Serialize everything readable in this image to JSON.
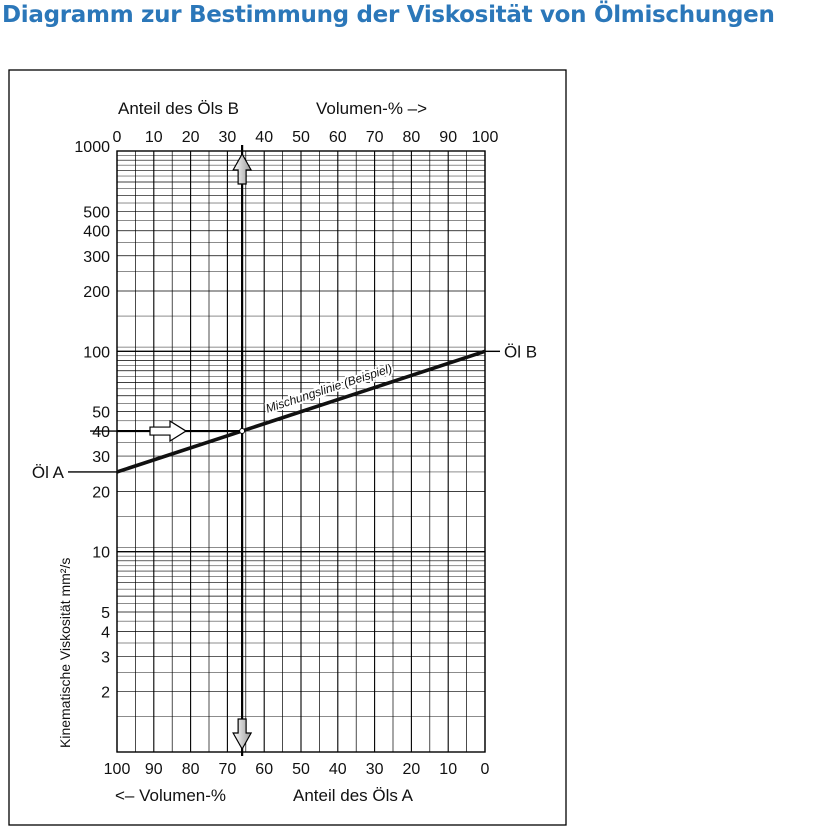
{
  "page": {
    "heading": "Diagramm zur Bestimmung der Viskosität von Ölmischungen"
  },
  "chart_data": {
    "type": "line",
    "title": "",
    "top_axis": {
      "label": "Anteil des Öls B",
      "unit_label": "Volumen-% –>",
      "tick_labels": [
        "0",
        "10",
        "20",
        "30",
        "40",
        "50",
        "60",
        "70",
        "80",
        "90",
        "100"
      ],
      "range": [
        0,
        100
      ]
    },
    "bottom_axis": {
      "unit_label": "<– Volumen-%",
      "label": "Anteil des Öls A",
      "tick_labels": [
        "100",
        "90",
        "80",
        "70",
        "60",
        "50",
        "40",
        "30",
        "20",
        "10",
        "0"
      ],
      "range": [
        100,
        0
      ]
    },
    "y_axis": {
      "label": "Kinematische Viskosität mm²/s",
      "scale": "log",
      "range": [
        1,
        1000
      ],
      "tick_values": [
        1000,
        500,
        400,
        300,
        200,
        100,
        50,
        40,
        30,
        20,
        10,
        5,
        4,
        3,
        2
      ],
      "tick_labels": [
        "1000",
        "500",
        "400",
        "300",
        "200",
        "100",
        "50",
        "40",
        "30",
        "20",
        "10",
        "5",
        "4",
        "3",
        "2"
      ]
    },
    "grid": true,
    "series": [
      {
        "name": "Mischungslinie (Beispiel)",
        "x": [
          0,
          100
        ],
        "y": [
          25,
          100
        ]
      }
    ],
    "endpoint_labels": {
      "left": "Öl A",
      "right": "Öl B"
    },
    "example": {
      "viscosity": 40,
      "percent_b": 34
    }
  }
}
